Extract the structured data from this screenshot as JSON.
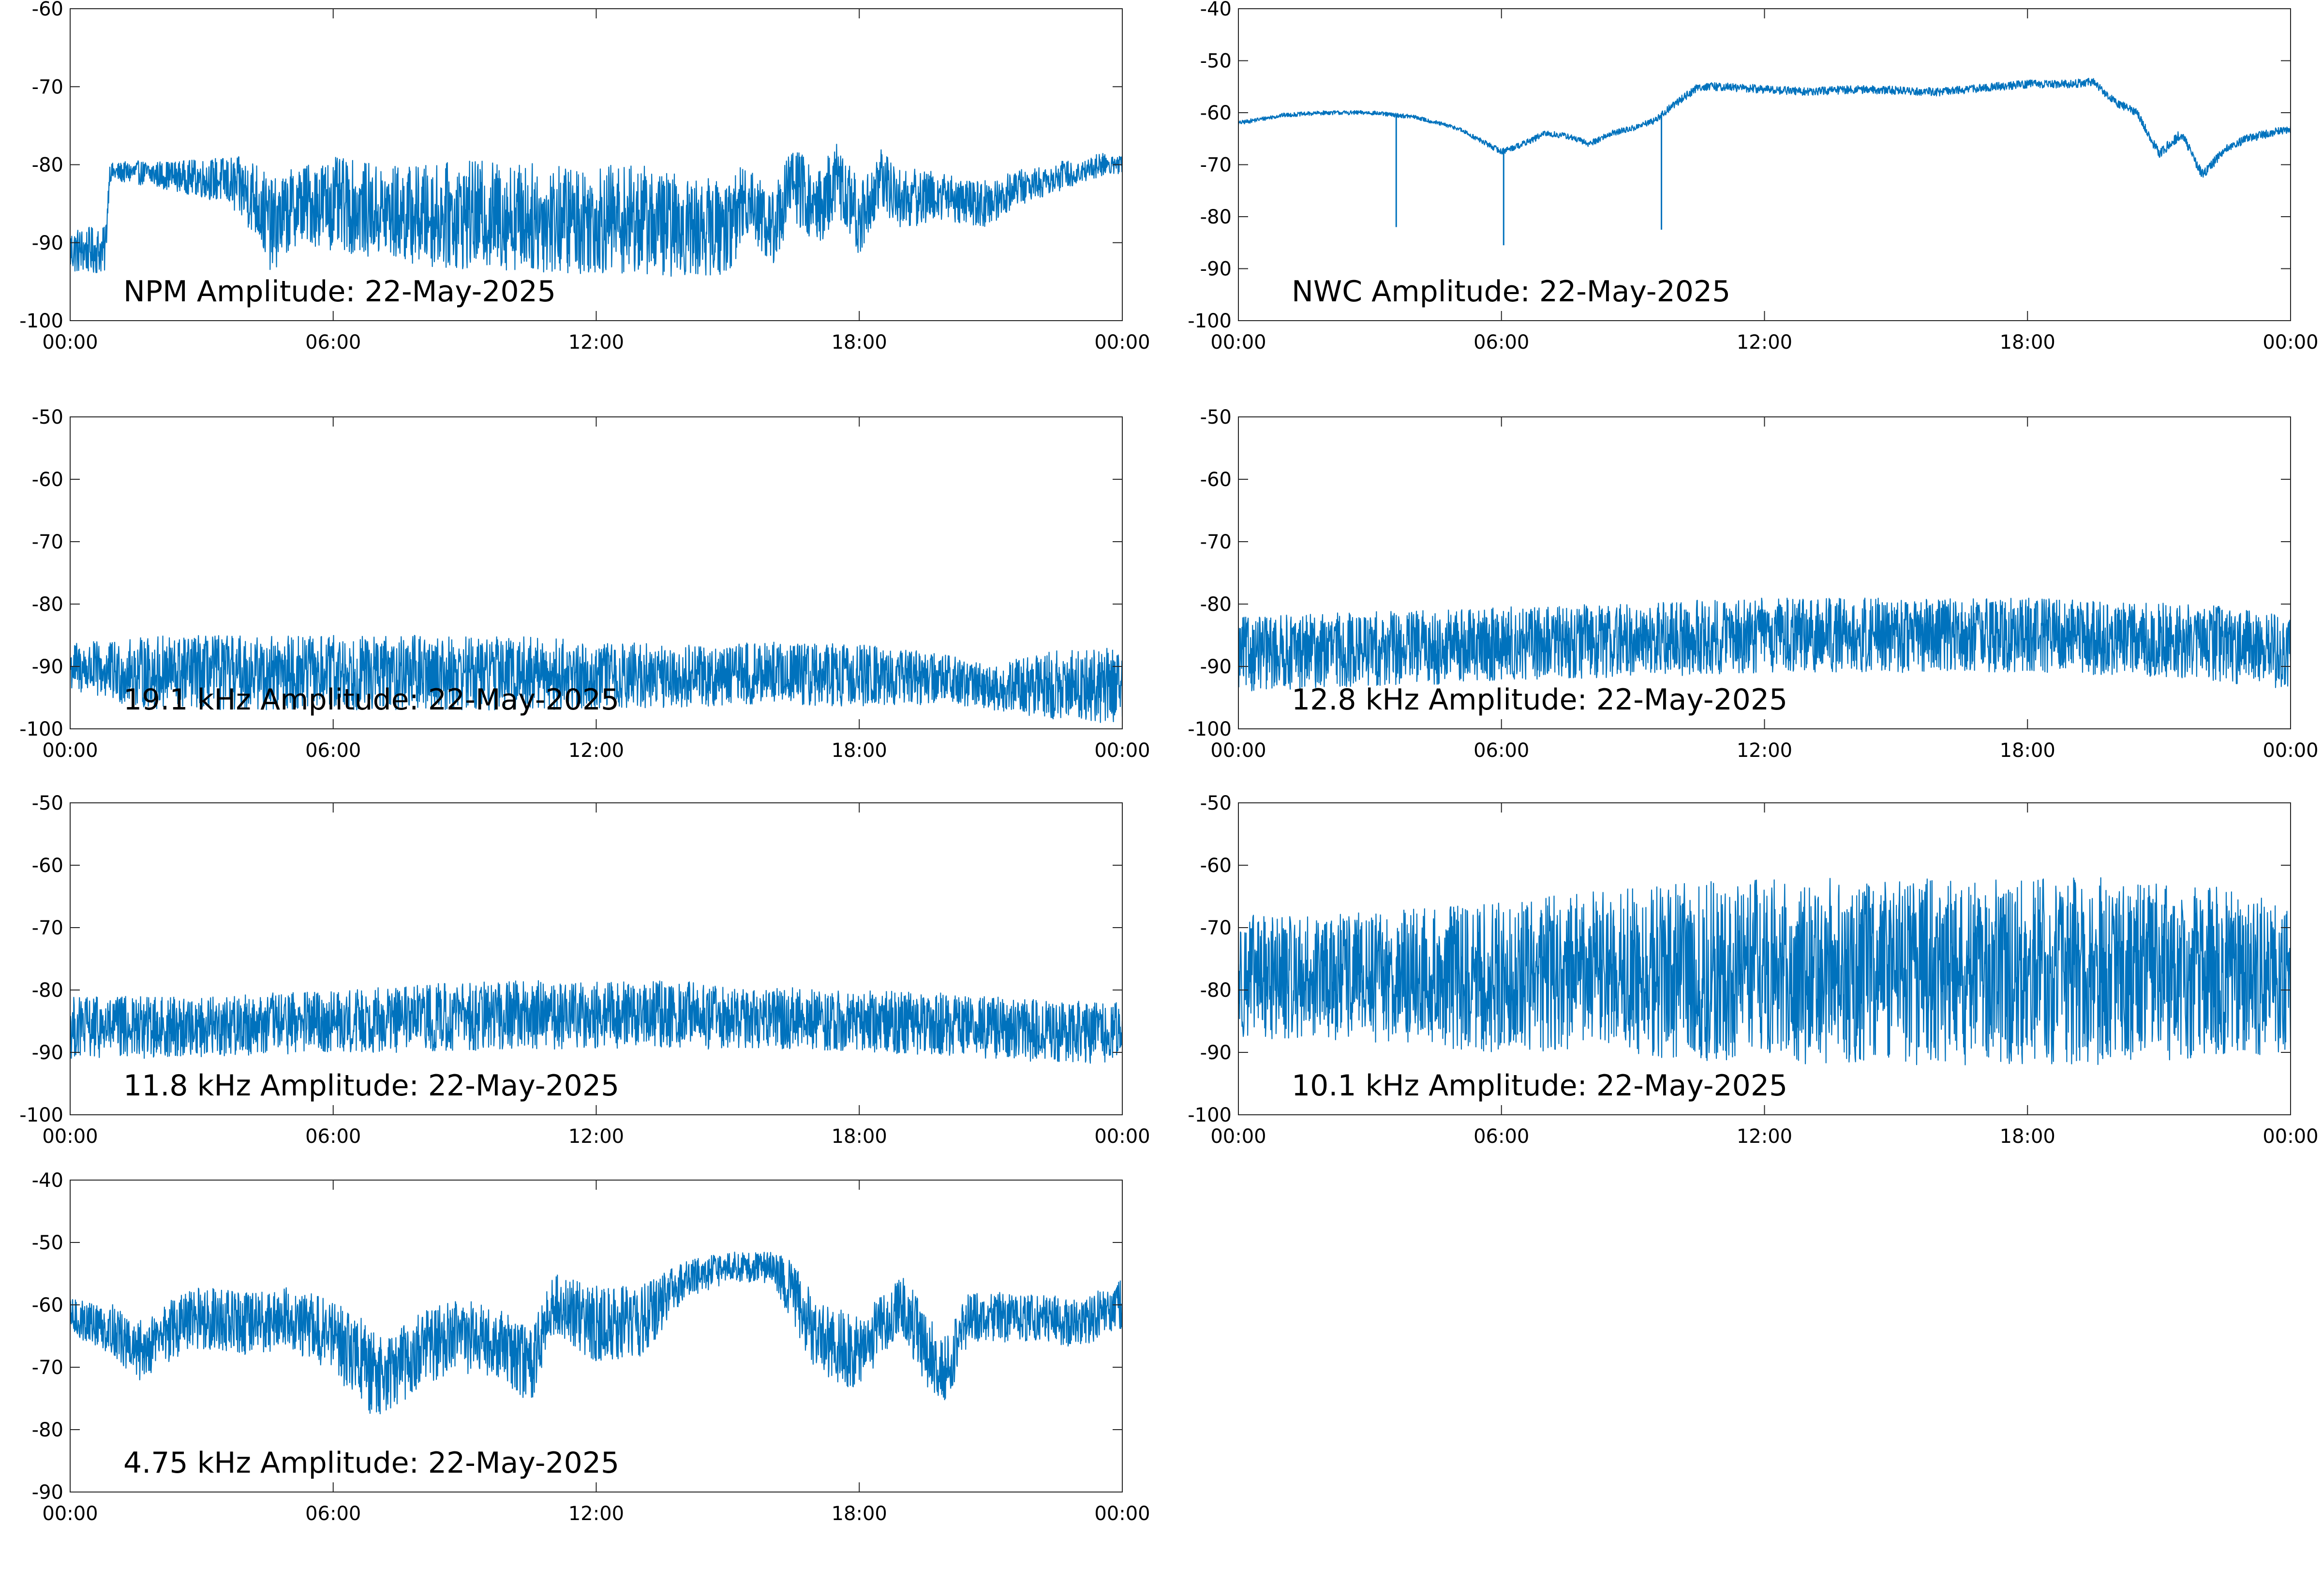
{
  "figure": {
    "background": "#ffffff",
    "series_color": "#0072bd",
    "axis_color": "#262626",
    "label_color": "#000000"
  },
  "chart_data": [
    {
      "id": "npm",
      "type": "line",
      "annotation": "NPM Amplitude: 22-May-2025",
      "x_tick_labels": [
        "00:00",
        "06:00",
        "12:00",
        "18:00",
        "00:00"
      ],
      "x_tick_hours": [
        0,
        6,
        12,
        18,
        24
      ],
      "ylim": [
        -100,
        -60
      ],
      "y_ticks": [
        -100,
        -90,
        -80,
        -70,
        -60
      ],
      "grid": false,
      "x_hours": [
        0,
        0.8,
        0.9,
        1.5,
        2.5,
        3.5,
        4.2,
        4.6,
        5.2,
        6,
        7,
        8,
        9,
        10,
        11,
        12,
        13,
        14,
        15,
        15.5,
        16,
        16.5,
        17,
        17.5,
        18,
        18.5,
        19,
        19.5,
        20,
        20.5,
        21,
        21.5,
        22,
        22.5,
        23,
        23.5,
        24
      ],
      "y_center": [
        -91,
        -91,
        -81,
        -81,
        -81.5,
        -82,
        -84,
        -88,
        -85,
        -85,
        -86,
        -86.5,
        -86.5,
        -86.5,
        -87,
        -87,
        -87,
        -88,
        -88,
        -84,
        -88.5,
        -82,
        -86,
        -82,
        -87,
        -82,
        -84.5,
        -84,
        -84,
        -85,
        -85,
        -83,
        -82.5,
        -81.5,
        -81,
        -80,
        -80
      ],
      "envelope": [
        3,
        3,
        1.2,
        1.5,
        2,
        3,
        5,
        6,
        5,
        6,
        6,
        6.5,
        7,
        7,
        7,
        7,
        7,
        6.5,
        6,
        5,
        5,
        5,
        5,
        5,
        5,
        4,
        4,
        3.5,
        3,
        3,
        3,
        2.5,
        2,
        2,
        1.5,
        1.5,
        1.5
      ],
      "spikes": []
    },
    {
      "id": "nwc",
      "type": "line",
      "annotation": "NWC Amplitude: 22-May-2025",
      "x_tick_labels": [
        "00:00",
        "06:00",
        "12:00",
        "18:00",
        "00:00"
      ],
      "x_tick_hours": [
        0,
        6,
        12,
        18,
        24
      ],
      "ylim": [
        -100,
        -40
      ],
      "y_ticks": [
        -100,
        -90,
        -80,
        -70,
        -60,
        -50,
        -40
      ],
      "grid": false,
      "x_hours": [
        0,
        1,
        2,
        3,
        4,
        5,
        6,
        6.5,
        7,
        7.5,
        8,
        8.5,
        9,
        9.5,
        10,
        10.5,
        11,
        12,
        13,
        14,
        15,
        16,
        17,
        18,
        19,
        19.5,
        20,
        20.5,
        21,
        21.5,
        22,
        22.2,
        22.5,
        23,
        24
      ],
      "y_center": [
        -62,
        -60.5,
        -60,
        -60,
        -60.8,
        -63,
        -67.5,
        -66,
        -64,
        -64.5,
        -66,
        -64,
        -63,
        -61.5,
        -58,
        -55,
        -55,
        -55.5,
        -56,
        -55.5,
        -55.7,
        -56,
        -55.2,
        -54.5,
        -54.5,
        -54,
        -58,
        -60,
        -68,
        -64,
        -72,
        -70,
        -67,
        -65,
        -63
      ],
      "envelope": [
        0.4,
        0.4,
        0.4,
        0.4,
        0.4,
        0.4,
        0.6,
        0.6,
        0.6,
        0.6,
        0.6,
        0.6,
        0.6,
        0.6,
        0.8,
        0.8,
        0.8,
        0.8,
        0.8,
        0.8,
        0.8,
        0.8,
        0.8,
        0.8,
        0.8,
        0.8,
        0.8,
        0.8,
        1,
        1,
        1,
        1,
        0.8,
        0.8,
        0.8
      ],
      "spikes": [
        {
          "hour": 3.6,
          "value": -82
        },
        {
          "hour": 6.05,
          "value": -85.5
        },
        {
          "hour": 9.65,
          "value": -82.5
        }
      ]
    },
    {
      "id": "f19_1",
      "type": "line",
      "annotation": "19.1 kHz Amplitude: 22-May-2025",
      "x_tick_labels": [
        "00:00",
        "06:00",
        "12:00",
        "18:00",
        "00:00"
      ],
      "x_tick_hours": [
        0,
        6,
        12,
        18,
        24
      ],
      "ylim": [
        -100,
        -50
      ],
      "y_ticks": [
        -100,
        -90,
        -80,
        -70,
        -60,
        -50
      ],
      "grid": false,
      "x_hours": [
        0,
        1,
        2,
        4,
        6,
        8,
        10,
        12,
        14,
        16,
        18,
        20,
        21,
        22,
        23,
        24
      ],
      "y_center": [
        -90,
        -91,
        -91,
        -91,
        -91,
        -91,
        -91,
        -91.5,
        -91.5,
        -91,
        -91.5,
        -92,
        -93.5,
        -93,
        -93,
        -93
      ],
      "envelope": [
        4,
        5,
        6,
        6,
        6,
        6,
        6,
        5.5,
        5,
        5,
        5,
        4,
        3.5,
        5,
        6,
        6
      ],
      "spikes": []
    },
    {
      "id": "f12_8",
      "type": "line",
      "annotation": "12.8 kHz Amplitude: 22-May-2025",
      "x_tick_labels": [
        "00:00",
        "06:00",
        "12:00",
        "18:00",
        "00:00"
      ],
      "x_tick_hours": [
        0,
        6,
        12,
        18,
        24
      ],
      "ylim": [
        -100,
        -50
      ],
      "y_ticks": [
        -100,
        -90,
        -80,
        -70,
        -60,
        -50
      ],
      "grid": false,
      "x_hours": [
        0,
        2,
        4,
        6,
        8,
        10,
        12,
        14,
        16,
        18,
        20,
        22,
        24
      ],
      "y_center": [
        -88,
        -87.5,
        -87,
        -86.5,
        -86,
        -85.5,
        -85,
        -85,
        -85,
        -85,
        -85.5,
        -86,
        -88
      ],
      "envelope": [
        6,
        6,
        6,
        6,
        6,
        6,
        6,
        6,
        6,
        6,
        6,
        6,
        6
      ],
      "spikes": []
    },
    {
      "id": "f11_8",
      "type": "line",
      "annotation": "11.8 kHz Amplitude: 22-May-2025",
      "x_tick_labels": [
        "00:00",
        "06:00",
        "12:00",
        "18:00",
        "00:00"
      ],
      "x_tick_hours": [
        0,
        6,
        12,
        18,
        24
      ],
      "ylim": [
        -100,
        -50
      ],
      "y_ticks": [
        -100,
        -90,
        -80,
        -70,
        -60,
        -50
      ],
      "grid": false,
      "x_hours": [
        0,
        2,
        4,
        6,
        8,
        10,
        12,
        14,
        16,
        18,
        20,
        22,
        24
      ],
      "y_center": [
        -86,
        -86,
        -85.5,
        -85,
        -84.5,
        -84,
        -84,
        -84,
        -84.5,
        -85,
        -85.5,
        -86.5,
        -87
      ],
      "envelope": [
        5,
        5,
        5,
        5,
        5.5,
        5.5,
        5.5,
        5.5,
        5,
        5,
        5,
        5,
        5
      ],
      "spikes": []
    },
    {
      "id": "f10_1",
      "type": "line",
      "annotation": "10.1 kHz Amplitude: 22-May-2025",
      "x_tick_labels": [
        "00:00",
        "06:00",
        "12:00",
        "18:00",
        "00:00"
      ],
      "x_tick_hours": [
        0,
        6,
        12,
        18,
        24
      ],
      "ylim": [
        -100,
        -50
      ],
      "y_ticks": [
        -100,
        -90,
        -80,
        -70,
        -60,
        -50
      ],
      "grid": false,
      "x_hours": [
        0,
        2,
        4,
        6,
        8,
        10,
        12,
        14,
        16,
        18,
        20,
        22,
        24
      ],
      "y_center": [
        -78,
        -78,
        -78,
        -78,
        -77,
        -77,
        -77,
        -77,
        -77,
        -77,
        -77,
        -77,
        -78
      ],
      "envelope": [
        10,
        10,
        11,
        12,
        13,
        14,
        15,
        15,
        15,
        15,
        15,
        14,
        12
      ],
      "spikes": []
    },
    {
      "id": "f4_75",
      "type": "line",
      "annotation": "4.75 kHz Amplitude: 22-May-2025",
      "x_tick_labels": [
        "00:00",
        "06:00",
        "12:00",
        "18:00",
        "00:00"
      ],
      "x_tick_hours": [
        0,
        6,
        12,
        18,
        24
      ],
      "ylim": [
        -90,
        -40
      ],
      "y_ticks": [
        -90,
        -80,
        -70,
        -60,
        -50,
        -40
      ],
      "grid": false,
      "x_hours": [
        0,
        1,
        1.5,
        2,
        3,
        4,
        5,
        6,
        6.5,
        7,
        7.5,
        8,
        9,
        10,
        10.5,
        11,
        12,
        13,
        14,
        15,
        16,
        16.5,
        17,
        18,
        18.5,
        19,
        19.5,
        20,
        20.5,
        21,
        22,
        23,
        24
      ],
      "y_center": [
        -62,
        -64,
        -68,
        -65,
        -62,
        -63,
        -62,
        -65,
        -68,
        -72,
        -70,
        -67,
        -65,
        -67,
        -70,
        -60,
        -63,
        -63,
        -56,
        -54,
        -54,
        -58,
        -65,
        -68,
        -63,
        -60,
        -67,
        -70,
        -62,
        -62,
        -62,
        -63,
        -60
      ],
      "envelope": [
        3,
        4,
        5,
        5,
        5,
        5,
        5,
        6,
        7,
        7,
        6,
        6,
        6,
        6,
        6,
        5,
        6,
        6,
        3,
        2.5,
        2.5,
        5,
        6,
        6,
        5,
        5,
        6,
        6,
        4,
        4,
        4,
        4,
        4
      ],
      "spikes": []
    }
  ]
}
